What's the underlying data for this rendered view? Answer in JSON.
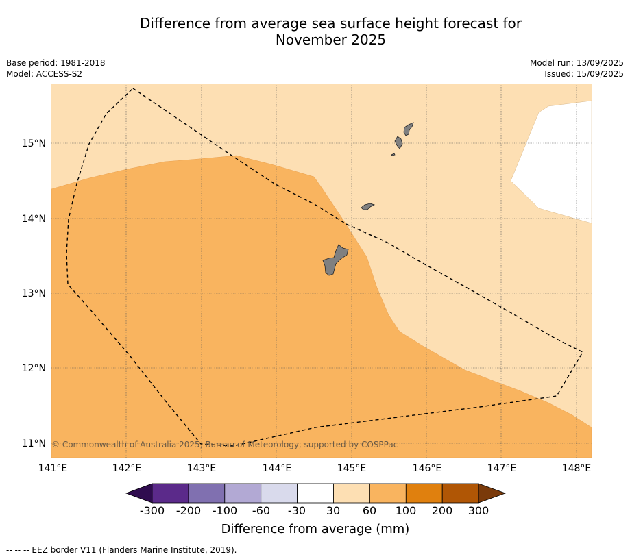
{
  "title": {
    "line1": "Difference from average sea surface height forecast for",
    "line2": "November 2025"
  },
  "meta_left": {
    "base_period": "Base period: 1981-2018",
    "model": "Model: ACCESS-S2"
  },
  "meta_right": {
    "model_run": "Model run: 13/09/2025",
    "issued": "Issued: 15/09/2025"
  },
  "map": {
    "lon_ticks": [
      "141°E",
      "142°E",
      "143°E",
      "144°E",
      "145°E",
      "146°E",
      "147°E",
      "148°E"
    ],
    "lat_ticks": [
      "15°N",
      "14°N",
      "13°N",
      "12°N",
      "11°N"
    ],
    "copyright": "© Commonwealth of Australia 2025, Bureau of Meteorology, supported by COSPPac",
    "fill_colors": {
      "30-60": "#fddfb3",
      "60-100": "#f9b45f",
      "below-30": "#ffffff"
    }
  },
  "colorbar": {
    "ticks": [
      "-300",
      "-200",
      "-100",
      "-60",
      "-30",
      "30",
      "60",
      "100",
      "200",
      "300"
    ],
    "colors": [
      "#2f0c4f",
      "#5b2a8a",
      "#8070b0",
      "#b2a9d4",
      "#d9daec",
      "#ffffff",
      "#fddfb3",
      "#f9b45f",
      "#e0800e",
      "#b05605",
      "#7a3a0a"
    ],
    "label": "Difference from average (mm)"
  },
  "footer": "--  --  -- EEZ border V11 (Flanders Marine Institute, 2019)."
}
